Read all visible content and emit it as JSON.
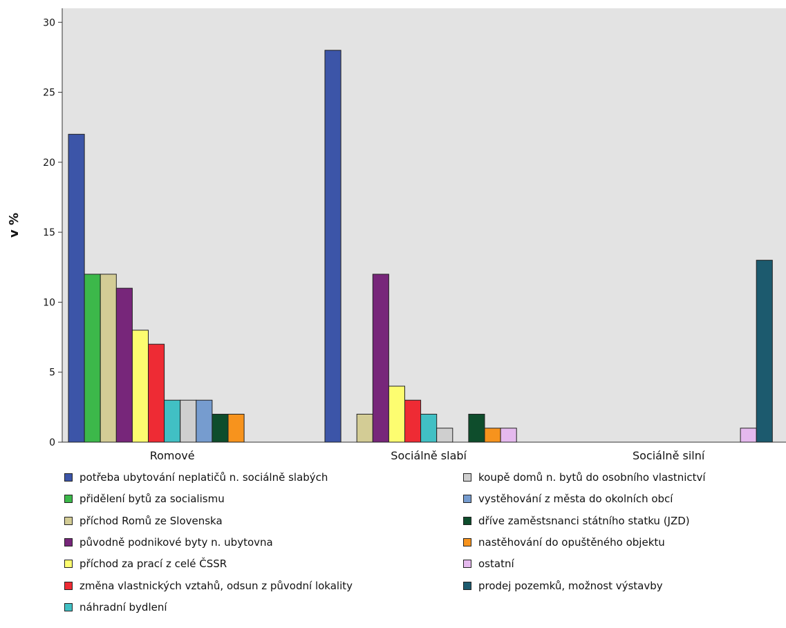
{
  "chart_data": {
    "type": "bar",
    "ylabel": "v %",
    "ylim": [
      0,
      31
    ],
    "yticks": [
      0,
      5,
      10,
      15,
      20,
      25,
      30
    ],
    "grid": false,
    "legend_position": "bottom",
    "categories": [
      "Romové",
      "Sociálně slabí",
      "Sociálně silní"
    ],
    "series": [
      {
        "name": "potřeba ubytování neplatičů n. sociálně slabých",
        "color": "#3c55a8",
        "values": [
          22,
          28,
          null
        ]
      },
      {
        "name": "přidělení bytů za socialismu",
        "color": "#3cb84a",
        "values": [
          12,
          null,
          null
        ]
      },
      {
        "name": "příchod Romů ze Slovenska",
        "color": "#d3cc95",
        "values": [
          12,
          2,
          null
        ]
      },
      {
        "name": "původně podnikové byty n. ubytovna",
        "color": "#77267a",
        "values": [
          11,
          12,
          null
        ]
      },
      {
        "name": "příchod za prací z celé ČSSR",
        "color": "#fdfd70",
        "values": [
          8,
          4,
          null
        ]
      },
      {
        "name": "změna vlastnických vztahů, odsun z původní lokality",
        "color": "#ee2b34",
        "values": [
          7,
          3,
          null
        ]
      },
      {
        "name": "náhradní bydlení",
        "color": "#41c0c4",
        "values": [
          3,
          2,
          null
        ]
      },
      {
        "name": "koupě domů n. bytů do osobního vlastnictví",
        "color": "#cfcfcf",
        "values": [
          3,
          1,
          null
        ]
      },
      {
        "name": "vystěhování z města do okolních obcí",
        "color": "#769ccf",
        "values": [
          3,
          null,
          null
        ]
      },
      {
        "name": "dříve zaměstsnanci státního statku (JZD)",
        "color": "#0e4d2c",
        "values": [
          2,
          2,
          null
        ]
      },
      {
        "name": "nastěhování do opuštěného objektu",
        "color": "#f7931d",
        "values": [
          2,
          1,
          null
        ]
      },
      {
        "name": "ostatní",
        "color": "#e5b9ee",
        "values": [
          null,
          1,
          1
        ]
      },
      {
        "name": "prodej pozemků, možnost výstavby",
        "color": "#1c5a6e",
        "values": [
          null,
          null,
          13
        ]
      }
    ]
  },
  "plot": {
    "background": "#e3e3e3"
  }
}
